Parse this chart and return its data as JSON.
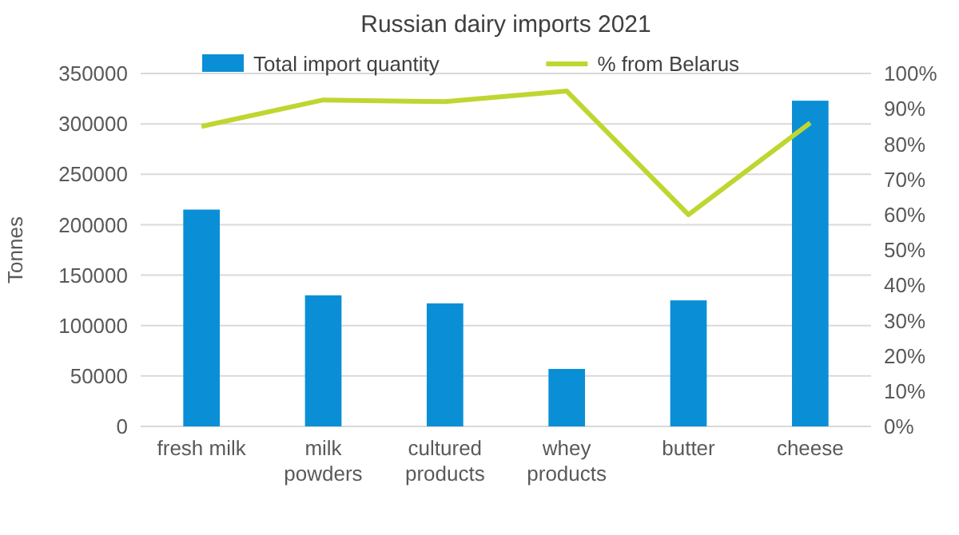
{
  "chart_data": {
    "type": "bar",
    "title": "Russian dairy imports 2021",
    "ylabel": "Tonnes",
    "categories": [
      "fresh milk",
      "milk\npowders",
      "cultured\nproducts",
      "whey\nproducts",
      "butter",
      "cheese"
    ],
    "series": [
      {
        "name": "Total import quantity",
        "color": "#0a8fd6",
        "values": [
          215000,
          130000,
          122000,
          57000,
          125000,
          323000
        ]
      },
      {
        "name": "% from Belarus",
        "type": "line",
        "axis": "y2",
        "color": "#bfd630",
        "values": [
          85,
          92.5,
          92,
          95,
          60,
          86
        ]
      }
    ],
    "ylim": [
      0,
      350000
    ],
    "yticks": [
      0,
      50000,
      100000,
      150000,
      200000,
      250000,
      300000,
      350000
    ],
    "y2lim": [
      0,
      100
    ],
    "y2ticks": [
      {
        "value": 0,
        "label": "0%"
      },
      {
        "value": 10,
        "label": "10%"
      },
      {
        "value": 20,
        "label": "20%"
      },
      {
        "value": 30,
        "label": "30%"
      },
      {
        "value": 40,
        "label": "40%"
      },
      {
        "value": 50,
        "label": "50%"
      },
      {
        "value": 60,
        "label": "60%"
      },
      {
        "value": 70,
        "label": "70%"
      },
      {
        "value": 80,
        "label": "80%"
      },
      {
        "value": 90,
        "label": "90%"
      },
      {
        "value": 100,
        "label": "100%"
      }
    ],
    "grid": "y",
    "legend": "top",
    "marker": "none",
    "line_style": "solid"
  }
}
